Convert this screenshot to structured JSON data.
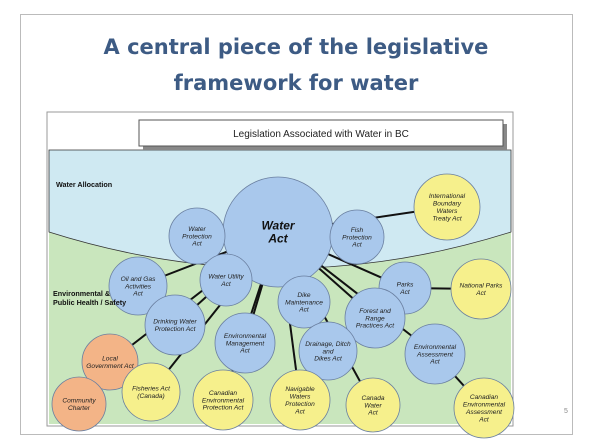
{
  "header": {
    "title_lines": [
      "A central piece of the legislative",
      "framework for water"
    ]
  },
  "diagram": {
    "heading": "Legislation Associated with Water in BC",
    "regions": [
      [
        "Water Allocation"
      ],
      [
        "Environmental &",
        "Public Health / Safety"
      ]
    ],
    "nodes": [
      {
        "lines": [
          "Water",
          "Act"
        ]
      },
      {
        "lines": [
          "Water",
          "Protection",
          "Act"
        ]
      },
      {
        "lines": [
          "Fish",
          "Protection",
          "Act"
        ]
      },
      {
        "lines": [
          "International",
          "Boundary",
          "Waters",
          "Treaty Act"
        ]
      },
      {
        "lines": [
          "Oil and Gas",
          "Activities",
          "Act"
        ]
      },
      {
        "lines": [
          "Water Utility",
          "Act"
        ]
      },
      {
        "lines": [
          "Parks",
          "Act"
        ]
      },
      {
        "lines": [
          "National Parks",
          "Act"
        ]
      },
      {
        "lines": [
          "Dike",
          "Maintenance",
          "Act"
        ]
      },
      {
        "lines": [
          "Drinking Water",
          "Protection Act"
        ]
      },
      {
        "lines": [
          "Forest and",
          "Range",
          "Practices Act"
        ]
      },
      {
        "lines": [
          "Environmental",
          "Management",
          "Act"
        ]
      },
      {
        "lines": [
          "Drainage, Ditch",
          "and",
          "Dikes Act"
        ]
      },
      {
        "lines": [
          "Environmental",
          "Assessment",
          "Act"
        ]
      },
      {
        "lines": [
          "Local",
          "Government Act"
        ]
      },
      {
        "lines": [
          "Community",
          "Charter"
        ]
      },
      {
        "lines": [
          "Fisheries Act",
          "(Canada)"
        ]
      },
      {
        "lines": [
          "Canadian",
          "Environmental",
          "Protection Act"
        ]
      },
      {
        "lines": [
          "Navigable",
          "Waters",
          "Protection",
          "Act"
        ]
      },
      {
        "lines": [
          "Canada",
          "Water",
          "Act"
        ]
      },
      {
        "lines": [
          "Canadian",
          "Environmental",
          "Assessment",
          "Act"
        ]
      }
    ]
  },
  "page_number": "5"
}
